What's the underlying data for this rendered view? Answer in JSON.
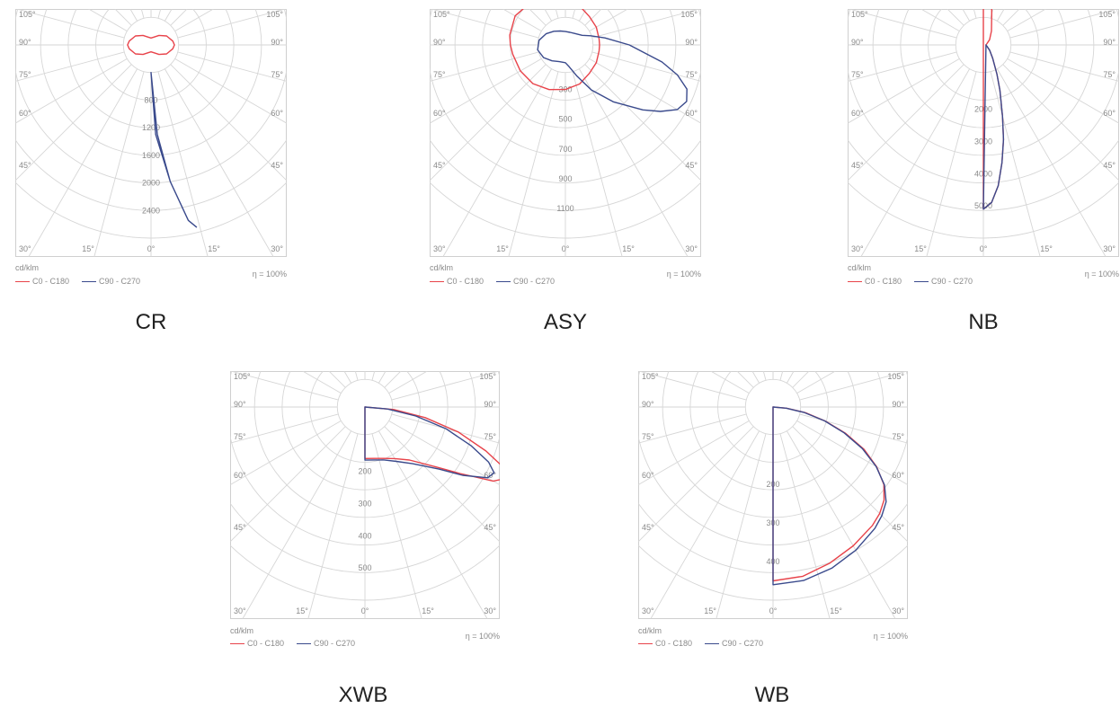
{
  "legend": {
    "c0_label": "C0 - C180",
    "c90_label": "C90 - C270",
    "c0_color": "#e8434a",
    "c90_color": "#3a4a8c"
  },
  "unit_label": "cd/klm",
  "efficiency_label": "η = 100%",
  "chart_data": [
    {
      "type": "polar",
      "label": "CR",
      "angle_labels": [
        "105°",
        "90°",
        "75°",
        "60°",
        "45°",
        "30°",
        "15°",
        "0°",
        "15°",
        "30°"
      ],
      "radial_labels": [
        "800",
        "1200",
        "1600",
        "2000",
        "2400"
      ],
      "r_max": 2800,
      "series": [
        {
          "name": "C0 - C180",
          "angles_deg": [
            0,
            20,
            40,
            60,
            80,
            90,
            100,
            120,
            140,
            160,
            180,
            200,
            220,
            240,
            260,
            270,
            280,
            300,
            320,
            340,
            360
          ],
          "values": [
            100,
            120,
            180,
            260,
            320,
            340,
            320,
            260,
            180,
            120,
            100,
            120,
            180,
            260,
            320,
            340,
            320,
            260,
            180,
            120,
            100
          ]
        },
        {
          "name": "C90 - C270",
          "angles_deg": [
            0,
            3,
            8,
            12,
            14,
            12,
            8,
            4,
            0
          ],
          "values": [
            400,
            1300,
            2000,
            2600,
            2720,
            2600,
            2000,
            1300,
            400
          ]
        }
      ]
    },
    {
      "type": "polar",
      "label": "ASY",
      "angle_labels": [
        "105°",
        "90°",
        "75°",
        "60°",
        "45°",
        "30°",
        "15°",
        "0°",
        "15°",
        "30°"
      ],
      "radial_labels": [
        "300",
        "500",
        "700",
        "900",
        "1100"
      ],
      "r_max": 1300,
      "series": [
        {
          "name": "C0 - C180",
          "angles_deg": [
            0,
            20,
            40,
            60,
            80,
            90,
            100,
            120,
            140,
            160,
            180,
            200,
            220,
            240,
            260,
            270,
            280,
            300,
            320,
            340,
            360
          ],
          "values": [
            300,
            280,
            250,
            240,
            230,
            230,
            230,
            240,
            250,
            280,
            300,
            330,
            370,
            390,
            380,
            370,
            360,
            350,
            340,
            320,
            300
          ]
        },
        {
          "name": "C90 - C270",
          "angles_deg": [
            0,
            10,
            20,
            30,
            40,
            50,
            55,
            60,
            65,
            70,
            75,
            80,
            90,
            100,
            110,
            120,
            140,
            160,
            180,
            200,
            220,
            240,
            260,
            280,
            300,
            320,
            340,
            360
          ],
          "values": [
            120,
            150,
            220,
            350,
            500,
            680,
            780,
            870,
            900,
            870,
            780,
            660,
            430,
            270,
            180,
            130,
            100,
            90,
            90,
            100,
            120,
            150,
            180,
            190,
            170,
            140,
            120,
            120
          ]
        }
      ]
    },
    {
      "type": "polar",
      "label": "NB",
      "angle_labels": [
        "105°",
        "90°",
        "75°",
        "60°",
        "45°",
        "30°",
        "15°",
        "0°",
        "15°",
        "30°"
      ],
      "radial_labels": [
        "2000",
        "3000",
        "4000",
        "5000"
      ],
      "r_max": 6000,
      "series": [
        {
          "name": "C0 - C180",
          "angles_deg": [
            0,
            3,
            6,
            9,
            12,
            15,
            20,
            25,
            35,
            50,
            70,
            90,
            110,
            130,
            150,
            165,
            170,
            175,
            180
          ],
          "values": [
            5100,
            4900,
            4400,
            3700,
            3000,
            2300,
            1500,
            1000,
            500,
            250,
            120,
            80,
            120,
            250,
            500,
            1000,
            1500,
            2300,
            5100
          ]
        },
        {
          "name": "C90 - C270",
          "angles_deg": [
            0,
            3,
            6,
            9,
            12,
            15,
            20,
            25,
            35,
            50,
            70,
            90
          ],
          "values": [
            5100,
            4900,
            4400,
            3700,
            3000,
            2300,
            1500,
            1000,
            500,
            250,
            120,
            80
          ]
        }
      ]
    },
    {
      "type": "polar",
      "label": "XWB",
      "angle_labels": [
        "105°",
        "90°",
        "75°",
        "60°",
        "45°",
        "30°",
        "15°",
        "0°",
        "15°",
        "30°"
      ],
      "radial_labels": [
        "200",
        "300",
        "400",
        "500"
      ],
      "r_max": 600,
      "series": [
        {
          "name": "C0 - C180",
          "angles_deg": [
            0,
            10,
            20,
            30,
            40,
            50,
            55,
            60,
            63,
            66,
            70,
            75,
            80,
            85,
            90
          ],
          "values": [
            160,
            162,
            170,
            185,
            215,
            290,
            360,
            460,
            490,
            480,
            400,
            300,
            190,
            90,
            0
          ]
        },
        {
          "name": "C90 - C270",
          "angles_deg": [
            0,
            10,
            20,
            30,
            40,
            50,
            55,
            60,
            63,
            66,
            70,
            75,
            80,
            85,
            90
          ],
          "values": [
            165,
            167,
            175,
            195,
            230,
            300,
            370,
            440,
            450,
            420,
            350,
            260,
            160,
            70,
            0
          ]
        }
      ]
    },
    {
      "type": "polar",
      "label": "WB",
      "angle_labels": [
        "105°",
        "90°",
        "75°",
        "60°",
        "45°",
        "30°",
        "15°",
        "0°",
        "15°",
        "30°"
      ],
      "radial_labels": [
        "200",
        "300",
        "400"
      ],
      "r_max": 500,
      "series": [
        {
          "name": "C0 - C180",
          "angles_deg": [
            0,
            10,
            20,
            30,
            40,
            45,
            50,
            55,
            60,
            65,
            70,
            75,
            80,
            85,
            90
          ],
          "values": [
            450,
            445,
            430,
            415,
            400,
            390,
            375,
            350,
            310,
            260,
            200,
            140,
            85,
            35,
            0
          ]
        },
        {
          "name": "C90 - C270",
          "angles_deg": [
            0,
            10,
            20,
            30,
            40,
            45,
            50,
            55,
            60,
            65,
            70,
            75,
            80,
            85,
            90
          ],
          "values": [
            460,
            456,
            444,
            428,
            410,
            398,
            382,
            352,
            308,
            255,
            196,
            138,
            82,
            34,
            0
          ]
        }
      ]
    }
  ]
}
